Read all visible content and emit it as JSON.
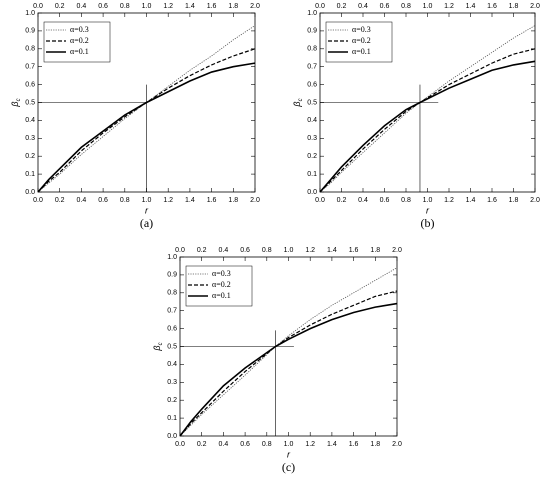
{
  "chart_data": [
    {
      "type": "line",
      "panel_label": "(a)",
      "xlabel": "r",
      "ylabel": "β",
      "ylabel_sub": "c",
      "x": [
        0,
        0.1,
        0.2,
        0.4,
        0.6,
        0.8,
        1.0,
        1.2,
        1.4,
        1.6,
        1.8,
        2.0
      ],
      "series": [
        {
          "name": "α=0.3",
          "color": "#555555",
          "dash": "dotted",
          "values": [
            0,
            0.05,
            0.1,
            0.21,
            0.31,
            0.41,
            0.5,
            0.59,
            0.68,
            0.76,
            0.85,
            0.93
          ]
        },
        {
          "name": "α=0.2",
          "color": "#000000",
          "dash": "dashed",
          "values": [
            0,
            0.06,
            0.11,
            0.23,
            0.33,
            0.42,
            0.5,
            0.58,
            0.65,
            0.71,
            0.76,
            0.8
          ]
        },
        {
          "name": "α=0.1",
          "color": "#000000",
          "dash": "solid",
          "values": [
            0,
            0.07,
            0.13,
            0.25,
            0.34,
            0.43,
            0.5,
            0.56,
            0.62,
            0.67,
            0.7,
            0.72
          ]
        }
      ],
      "crosshair": {
        "x": 1.0,
        "y": 0.5,
        "x_end": 1.0,
        "y_end": 0.6
      },
      "xlim": [
        0,
        2
      ],
      "ylim": [
        0,
        1
      ],
      "xticks": [
        {
          "value": 0,
          "label": "0.0"
        },
        {
          "value": 0.2,
          "label": "0.2"
        },
        {
          "value": 0.4,
          "label": "0.4"
        },
        {
          "value": 0.6,
          "label": "0.6"
        },
        {
          "value": 0.8,
          "label": "0.8"
        },
        {
          "value": 1,
          "label": "1.0"
        },
        {
          "value": 1.2,
          "label": "1.2"
        },
        {
          "value": 1.4,
          "label": "1.4"
        },
        {
          "value": 1.6,
          "label": "1.6"
        },
        {
          "value": 1.8,
          "label": "1.8"
        },
        {
          "value": 2,
          "label": "2.0"
        }
      ],
      "yticks": [
        {
          "value": 0,
          "label": "0.0"
        },
        {
          "value": 0.1,
          "label": "0.1"
        },
        {
          "value": 0.2,
          "label": "0.2"
        },
        {
          "value": 0.3,
          "label": "0.3"
        },
        {
          "value": 0.4,
          "label": "0.4"
        },
        {
          "value": 0.5,
          "label": "0.5"
        },
        {
          "value": 0.6,
          "label": "0.6"
        },
        {
          "value": 0.7,
          "label": "0.7"
        },
        {
          "value": 0.8,
          "label": "0.8"
        },
        {
          "value": 0.9,
          "label": "0.9"
        },
        {
          "value": 1,
          "label": "1.0"
        }
      ]
    },
    {
      "type": "line",
      "panel_label": "(b)",
      "xlabel": "r",
      "ylabel": "β",
      "ylabel_sub": "c",
      "x": [
        0,
        0.1,
        0.2,
        0.4,
        0.6,
        0.8,
        0.93,
        1.2,
        1.4,
        1.6,
        1.8,
        2.0
      ],
      "series": [
        {
          "name": "α=0.3",
          "color": "#555555",
          "dash": "dotted",
          "values": [
            0,
            0.05,
            0.11,
            0.22,
            0.33,
            0.44,
            0.5,
            0.62,
            0.7,
            0.78,
            0.86,
            0.93
          ]
        },
        {
          "name": "α=0.2",
          "color": "#000000",
          "dash": "dashed",
          "values": [
            0,
            0.06,
            0.12,
            0.24,
            0.35,
            0.45,
            0.5,
            0.6,
            0.66,
            0.72,
            0.77,
            0.8
          ]
        },
        {
          "name": "α=0.1",
          "color": "#000000",
          "dash": "solid",
          "values": [
            0,
            0.07,
            0.14,
            0.26,
            0.37,
            0.46,
            0.5,
            0.58,
            0.63,
            0.68,
            0.71,
            0.73
          ]
        }
      ],
      "crosshair": {
        "x": 0.93,
        "y": 0.5,
        "x_end": 1.1,
        "y_end": 0.6
      },
      "xlim": [
        0,
        2
      ],
      "ylim": [
        0,
        1
      ],
      "xticks": [
        {
          "value": 0,
          "label": "0.0"
        },
        {
          "value": 0.2,
          "label": "0.2"
        },
        {
          "value": 0.4,
          "label": "0.4"
        },
        {
          "value": 0.6,
          "label": "0.6"
        },
        {
          "value": 0.8,
          "label": "0.8"
        },
        {
          "value": 1,
          "label": "1.0"
        },
        {
          "value": 1.2,
          "label": "1.2"
        },
        {
          "value": 1.4,
          "label": "1.4"
        },
        {
          "value": 1.6,
          "label": "1.6"
        },
        {
          "value": 1.8,
          "label": "1.8"
        },
        {
          "value": 2,
          "label": "2.0"
        }
      ],
      "yticks": [
        {
          "value": 0,
          "label": "0.0"
        },
        {
          "value": 0.1,
          "label": "0.1"
        },
        {
          "value": 0.2,
          "label": "0.2"
        },
        {
          "value": 0.3,
          "label": "0.3"
        },
        {
          "value": 0.4,
          "label": "0.4"
        },
        {
          "value": 0.5,
          "label": "0.5"
        },
        {
          "value": 0.6,
          "label": "0.6"
        },
        {
          "value": 0.7,
          "label": "0.7"
        },
        {
          "value": 0.8,
          "label": "0.8"
        },
        {
          "value": 0.9,
          "label": "0.9"
        },
        {
          "value": 1,
          "label": "1.0"
        }
      ]
    },
    {
      "type": "line",
      "panel_label": "(c)",
      "xlabel": "r",
      "ylabel": "β",
      "ylabel_sub": "c",
      "x": [
        0,
        0.1,
        0.2,
        0.4,
        0.6,
        0.88,
        1.0,
        1.2,
        1.4,
        1.6,
        1.8,
        2.0
      ],
      "series": [
        {
          "name": "α=0.3",
          "color": "#555555",
          "dash": "dotted",
          "values": [
            0,
            0.06,
            0.12,
            0.23,
            0.34,
            0.5,
            0.56,
            0.65,
            0.73,
            0.8,
            0.87,
            0.94
          ]
        },
        {
          "name": "α=0.2",
          "color": "#000000",
          "dash": "dashed",
          "values": [
            0,
            0.07,
            0.13,
            0.25,
            0.36,
            0.5,
            0.55,
            0.62,
            0.68,
            0.73,
            0.78,
            0.81
          ]
        },
        {
          "name": "α=0.1",
          "color": "#000000",
          "dash": "solid",
          "values": [
            0,
            0.08,
            0.15,
            0.28,
            0.38,
            0.5,
            0.54,
            0.6,
            0.65,
            0.69,
            0.72,
            0.74
          ]
        }
      ],
      "crosshair": {
        "x": 0.88,
        "y": 0.5,
        "x_end": 1.05,
        "y_end": 0.59
      },
      "xlim": [
        0,
        2
      ],
      "ylim": [
        0,
        1
      ],
      "xticks": [
        {
          "value": 0,
          "label": "0.0"
        },
        {
          "value": 0.2,
          "label": "0.2"
        },
        {
          "value": 0.4,
          "label": "0.4"
        },
        {
          "value": 0.6,
          "label": "0.6"
        },
        {
          "value": 0.8,
          "label": "0.8"
        },
        {
          "value": 1,
          "label": "1.0"
        },
        {
          "value": 1.2,
          "label": "1.2"
        },
        {
          "value": 1.4,
          "label": "1.4"
        },
        {
          "value": 1.6,
          "label": "1.6"
        },
        {
          "value": 1.8,
          "label": "1.8"
        },
        {
          "value": 2,
          "label": "2.0"
        }
      ],
      "yticks": [
        {
          "value": 0,
          "label": "0.0"
        },
        {
          "value": 0.1,
          "label": "0.1"
        },
        {
          "value": 0.2,
          "label": "0.2"
        },
        {
          "value": 0.3,
          "label": "0.3"
        },
        {
          "value": 0.4,
          "label": "0.4"
        },
        {
          "value": 0.5,
          "label": "0.5"
        },
        {
          "value": 0.6,
          "label": "0.6"
        },
        {
          "value": 0.7,
          "label": "0.7"
        },
        {
          "value": 0.8,
          "label": "0.8"
        },
        {
          "value": 0.9,
          "label": "0.9"
        },
        {
          "value": 1,
          "label": "1.0"
        }
      ]
    }
  ]
}
